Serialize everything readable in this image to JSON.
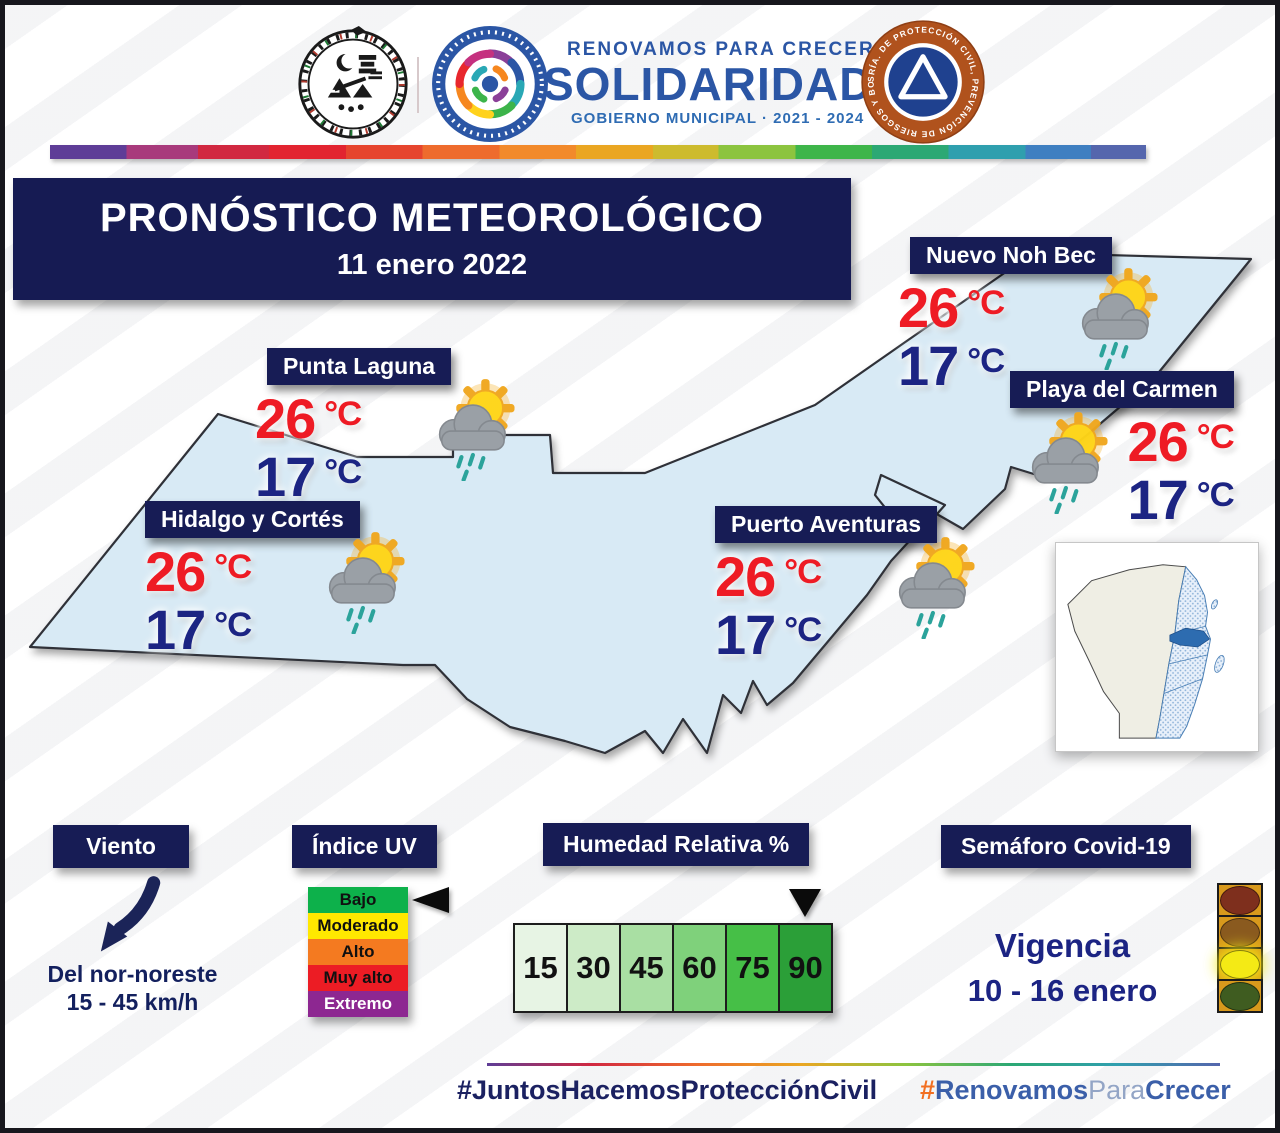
{
  "header": {
    "tagline": "RENOVAMOS PARA CRECER",
    "brand": "SOLIDARIDAD",
    "government": "GOBIERNO MUNICIPAL · 2021 - 2024",
    "badge_ring_text": "SRÍA. DE PROTECCIÓN CIVIL, PREVENCIÓN DE RIESGOS Y BOMBEROS"
  },
  "title": {
    "main": "PRONÓSTICO METEOROLÓGICO",
    "date": "11 enero 2022"
  },
  "map": {
    "temp_unit": "°C",
    "condition": "sun-cloud-rain",
    "locations": [
      {
        "name": "Nuevo Noh Bec",
        "high": "26",
        "low": "17"
      },
      {
        "name": "Punta Laguna",
        "high": "26",
        "low": "17"
      },
      {
        "name": "Playa del Carmen",
        "high": "26",
        "low": "17"
      },
      {
        "name": "Hidalgo y Cortés",
        "high": "26",
        "low": "17"
      },
      {
        "name": "Puerto Aventuras",
        "high": "26",
        "low": "17"
      }
    ]
  },
  "panels": {
    "wind": {
      "title": "Viento",
      "arrow_direction": "down-left",
      "direction": "Del nor-noreste",
      "speed": "15 - 45 km/h",
      "color": "#13205e"
    },
    "uv": {
      "title": "Índice UV",
      "current": "Bajo",
      "levels": [
        {
          "label": "Bajo",
          "color": "#0db14b",
          "text_color": "#101010"
        },
        {
          "label": "Moderado",
          "color": "#ffe800",
          "text_color": "#101010"
        },
        {
          "label": "Alto",
          "color": "#f47a20",
          "text_color": "#101010"
        },
        {
          "label": "Muy alto",
          "color": "#ec1c24",
          "text_color": "#101010"
        },
        {
          "label": "Extremo",
          "color": "#8d2791",
          "text_color": "#ffffff"
        }
      ]
    },
    "humidity": {
      "title": "Humedad Relativa %",
      "current": "90",
      "values": [
        "15",
        "30",
        "45",
        "60",
        "75",
        "90"
      ],
      "colors": [
        "#e7f4e4",
        "#cdebc7",
        "#a9dfa3",
        "#7fd17b",
        "#46bf47",
        "#2b9f38"
      ]
    },
    "covid": {
      "title": "Semáforo Covid-19",
      "label1": "Vigencia",
      "label2": "10 - 16 enero",
      "current": "amarillo",
      "lights": [
        {
          "name": "rojo",
          "color": "#7e2f1d",
          "active": false
        },
        {
          "name": "naranja",
          "color": "#8a5a1f",
          "active": false
        },
        {
          "name": "amarillo",
          "color": "#f4ea15",
          "active": true
        },
        {
          "name": "verde",
          "color": "#3f5c20",
          "active": false
        }
      ]
    }
  },
  "footer": {
    "hashtag1": "#JuntosHacemosProtecciónCivil",
    "hashtag2": {
      "hash": "#",
      "bold1": "Renovamos",
      "light": "Para",
      "bold2": "Crecer"
    }
  },
  "colors": {
    "navy_box": "#171c55",
    "temp_high": "#ee1b24",
    "temp_low": "#1c2483",
    "map_fill": "#d8eaf5",
    "rain": "#2ba39b",
    "hashtag1": "#1b2161",
    "hashtag2_hash": "#f26f21"
  }
}
